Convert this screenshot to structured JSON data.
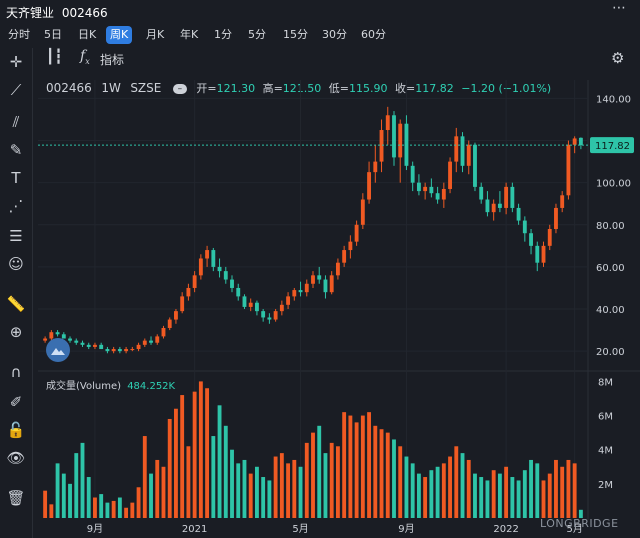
{
  "header": {
    "name": "天齐锂业",
    "code": "002466",
    "more": "⋯"
  },
  "period_tabs": [
    "分时",
    "5日",
    "日K",
    "周K",
    "月K",
    "年K",
    "1分",
    "5分",
    "15分",
    "30分",
    "60分"
  ],
  "active_tab": "周K",
  "toolbar": {
    "indicators_label": "指标"
  },
  "chart_header": {
    "symbol": "002466",
    "interval": "1W",
    "exchange": "SZSE",
    "open_label": "开=",
    "open": "121.30",
    "high_label": "高=",
    "high": "121.50",
    "low_label": "低=",
    "low": "115.90",
    "close_label": "收=",
    "close": "117.82",
    "change": "−1.20 (−1.01%)"
  },
  "volume_header": {
    "label": "成交量(Volume)",
    "value": "484.252K"
  },
  "watermark": "LONGBRIDGE",
  "colors": {
    "up": "#f05a23",
    "down": "#2ec4a8",
    "background": "#1a1d24",
    "last_price": "#2ec4a8"
  },
  "chart_data": {
    "type": "candlestick",
    "price_axis": {
      "ticks": [
        "140.00",
        "120.00",
        "100.00",
        "80.00",
        "60.00",
        "40.00",
        "20.00"
      ],
      "ylim": [
        12,
        144
      ]
    },
    "volume_axis": {
      "ticks": [
        "8M",
        "6M",
        "4M",
        "2M"
      ],
      "ylim": [
        0,
        8.2
      ]
    },
    "x_ticks": [
      "9月",
      "2021",
      "5月",
      "9月",
      "2022",
      "5月"
    ],
    "last_price": "117.82",
    "candles": [
      [
        25,
        27,
        24,
        26
      ],
      [
        26,
        30,
        25,
        29
      ],
      [
        29,
        30,
        27,
        28
      ],
      [
        28,
        29,
        26,
        26
      ],
      [
        26,
        27,
        24,
        25
      ],
      [
        25,
        26,
        23,
        24
      ],
      [
        24,
        25,
        22,
        23
      ],
      [
        23,
        24,
        21,
        22
      ],
      [
        22,
        24,
        21,
        23
      ],
      [
        23,
        24,
        21,
        21
      ],
      [
        21,
        22,
        19,
        20
      ],
      [
        20,
        22,
        19,
        21
      ],
      [
        21,
        22,
        19,
        20
      ],
      [
        20,
        22,
        19,
        21
      ],
      [
        21,
        22,
        20,
        21
      ],
      [
        21,
        24,
        20,
        23
      ],
      [
        23,
        26,
        22,
        25
      ],
      [
        25,
        27,
        23,
        24
      ],
      [
        24,
        28,
        23,
        27
      ],
      [
        27,
        32,
        26,
        31
      ],
      [
        31,
        36,
        30,
        35
      ],
      [
        35,
        40,
        33,
        39
      ],
      [
        39,
        48,
        38,
        46
      ],
      [
        46,
        52,
        44,
        50
      ],
      [
        50,
        58,
        48,
        56
      ],
      [
        56,
        66,
        54,
        64
      ],
      [
        64,
        70,
        60,
        68
      ],
      [
        68,
        69,
        58,
        60
      ],
      [
        60,
        64,
        55,
        58
      ],
      [
        58,
        60,
        52,
        54
      ],
      [
        54,
        56,
        48,
        50
      ],
      [
        50,
        52,
        44,
        46
      ],
      [
        46,
        47,
        40,
        41
      ],
      [
        41,
        45,
        39,
        43
      ],
      [
        43,
        44,
        37,
        39
      ],
      [
        39,
        40,
        34,
        36
      ],
      [
        36,
        38,
        33,
        35
      ],
      [
        35,
        40,
        34,
        39
      ],
      [
        39,
        44,
        37,
        42
      ],
      [
        42,
        48,
        40,
        46
      ],
      [
        46,
        50,
        44,
        49
      ],
      [
        49,
        53,
        46,
        48
      ],
      [
        48,
        54,
        46,
        52
      ],
      [
        52,
        58,
        50,
        56
      ],
      [
        56,
        60,
        52,
        54
      ],
      [
        54,
        56,
        45,
        48
      ],
      [
        48,
        58,
        47,
        56
      ],
      [
        56,
        64,
        54,
        62
      ],
      [
        62,
        70,
        60,
        68
      ],
      [
        68,
        75,
        64,
        72
      ],
      [
        72,
        82,
        70,
        80
      ],
      [
        80,
        95,
        78,
        92
      ],
      [
        92,
        110,
        90,
        105
      ],
      [
        105,
        118,
        100,
        110
      ],
      [
        110,
        130,
        105,
        125
      ],
      [
        125,
        136,
        118,
        132
      ],
      [
        132,
        134,
        108,
        112
      ],
      [
        112,
        130,
        100,
        128
      ],
      [
        128,
        132,
        106,
        108
      ],
      [
        108,
        110,
        96,
        100
      ],
      [
        100,
        104,
        94,
        96
      ],
      [
        96,
        100,
        92,
        98
      ],
      [
        98,
        102,
        93,
        95
      ],
      [
        95,
        98,
        90,
        92
      ],
      [
        92,
        100,
        88,
        97
      ],
      [
        97,
        112,
        95,
        110
      ],
      [
        110,
        126,
        105,
        122
      ],
      [
        122,
        124,
        105,
        108
      ],
      [
        108,
        120,
        104,
        118
      ],
      [
        118,
        119,
        96,
        98
      ],
      [
        98,
        100,
        90,
        92
      ],
      [
        92,
        96,
        84,
        86
      ],
      [
        86,
        92,
        82,
        90
      ],
      [
        90,
        96,
        86,
        88
      ],
      [
        88,
        100,
        85,
        98
      ],
      [
        98,
        100,
        86,
        88
      ],
      [
        88,
        90,
        80,
        82
      ],
      [
        82,
        84,
        72,
        76
      ],
      [
        76,
        78,
        66,
        70
      ],
      [
        70,
        72,
        58,
        62
      ],
      [
        62,
        72,
        60,
        70
      ],
      [
        70,
        80,
        68,
        78
      ],
      [
        78,
        90,
        76,
        88
      ],
      [
        88,
        96,
        86,
        94
      ],
      [
        94,
        120,
        92,
        118
      ],
      [
        118,
        122,
        114,
        121
      ],
      [
        121.3,
        121.5,
        115.9,
        117.82
      ]
    ]
  }
}
